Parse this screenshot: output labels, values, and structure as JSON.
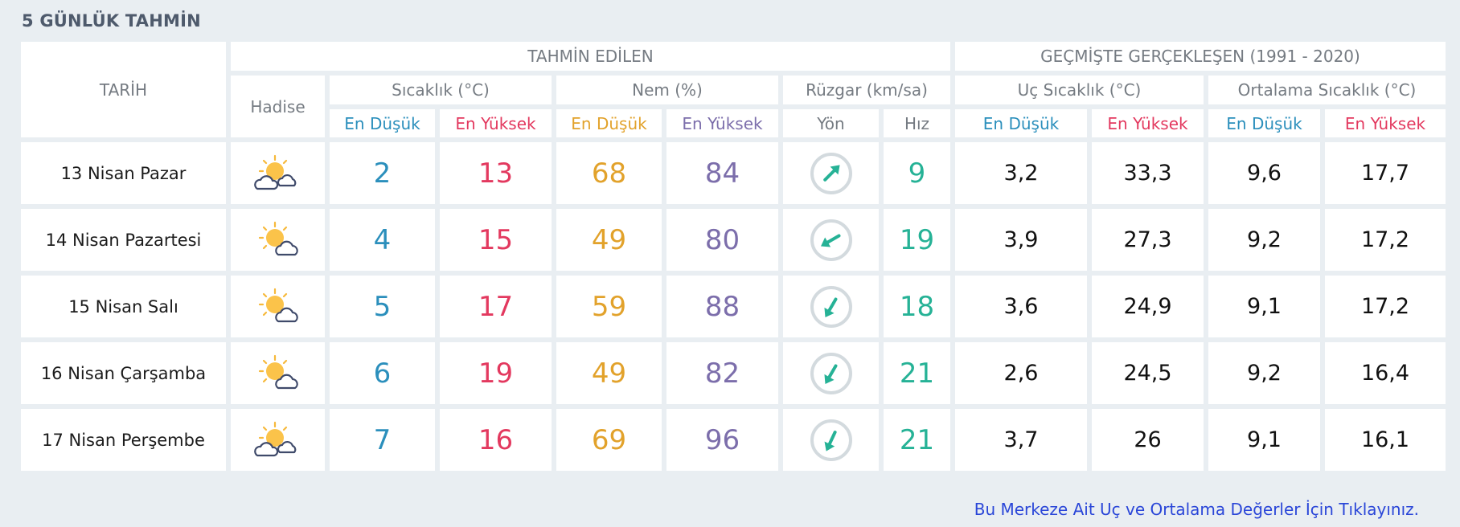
{
  "title": "5 GÜNLÜK TAHMİN",
  "headers": {
    "date": "TARİH",
    "forecast_group": "TAHMİN EDİLEN",
    "history_group": "GEÇMİŞTE GERÇEKLEŞEN (1991 - 2020)",
    "event": "Hadise",
    "temp": "Sıcaklık (°C)",
    "humidity": "Nem (%)",
    "wind": "Rüzgar (km/sa)",
    "extreme_temp": "Uç Sıcaklık (°C)",
    "avg_temp": "Ortalama Sıcaklık (°C)",
    "low": "En Düşük",
    "high": "En Yüksek",
    "direction": "Yön",
    "speed": "Hız"
  },
  "rows": [
    {
      "date": "13 Nisan Pazar",
      "icon": "partly-cloudy-two-clouds-icon",
      "temp_low": "2",
      "temp_high": "13",
      "hum_low": "68",
      "hum_high": "84",
      "wind_dir_deg": 45,
      "wind_speed": "9",
      "ext_low": "3,2",
      "ext_high": "33,3",
      "avg_low": "9,6",
      "avg_high": "17,7"
    },
    {
      "date": "14 Nisan Pazartesi",
      "icon": "partly-cloudy-icon",
      "temp_low": "4",
      "temp_high": "15",
      "hum_low": "49",
      "hum_high": "80",
      "wind_dir_deg": 240,
      "wind_speed": "19",
      "ext_low": "3,9",
      "ext_high": "27,3",
      "avg_low": "9,2",
      "avg_high": "17,2"
    },
    {
      "date": "15 Nisan Salı",
      "icon": "partly-cloudy-icon",
      "temp_low": "5",
      "temp_high": "17",
      "hum_low": "59",
      "hum_high": "88",
      "wind_dir_deg": 210,
      "wind_speed": "18",
      "ext_low": "3,6",
      "ext_high": "24,9",
      "avg_low": "9,1",
      "avg_high": "17,2"
    },
    {
      "date": "16 Nisan Çarşamba",
      "icon": "partly-cloudy-icon",
      "temp_low": "6",
      "temp_high": "19",
      "hum_low": "49",
      "hum_high": "82",
      "wind_dir_deg": 210,
      "wind_speed": "21",
      "ext_low": "2,6",
      "ext_high": "24,5",
      "avg_low": "9,2",
      "avg_high": "16,4"
    },
    {
      "date": "17 Nisan Perşembe",
      "icon": "partly-cloudy-two-clouds-icon",
      "temp_low": "7",
      "temp_high": "16",
      "hum_low": "69",
      "hum_high": "96",
      "wind_dir_deg": 205,
      "wind_speed": "21",
      "ext_low": "3,7",
      "ext_high": "26",
      "avg_low": "9,1",
      "avg_high": "16,1"
    }
  ],
  "link_text": "Bu Merkeze Ait Uç ve Ortalama Değerler İçin Tıklayınız.",
  "colors": {
    "low": "#2b8fbc",
    "high": "#e3395f",
    "humidity_low": "#e2a22b",
    "humidity_high": "#7c6eab",
    "wind": "#26b296",
    "background": "#e9eef2"
  }
}
